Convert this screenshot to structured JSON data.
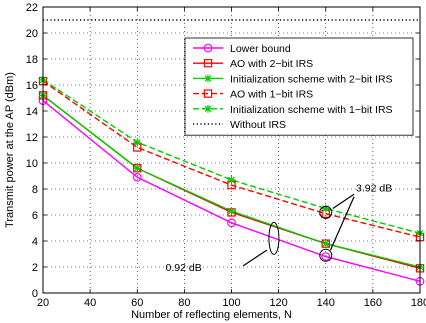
{
  "chart_data": {
    "type": "line",
    "title": "",
    "xlabel": "Number of reflecting elements, N",
    "ylabel": "Transmit power at the AP (dBm)",
    "xlim": [
      20,
      180
    ],
    "ylim": [
      0,
      22
    ],
    "x_ticks": [
      20,
      40,
      60,
      80,
      100,
      120,
      140,
      160,
      180
    ],
    "y_ticks": [
      0,
      2,
      4,
      6,
      8,
      10,
      12,
      14,
      16,
      18,
      20,
      22
    ],
    "grid": true,
    "grid_style": "dotted",
    "legend_position": "top-right",
    "x": [
      20,
      60,
      100,
      140,
      180
    ],
    "series": [
      {
        "name": "Lower bound",
        "values": [
          14.8,
          8.9,
          5.4,
          2.8,
          0.9
        ],
        "color": "#ff00ff",
        "dash": "solid",
        "marker": "circle"
      },
      {
        "name": "AO with 2−bit IRS",
        "values": [
          15.2,
          9.6,
          6.2,
          3.8,
          1.9
        ],
        "color": "#ff0000",
        "dash": "solid",
        "marker": "square"
      },
      {
        "name": "Initialization scheme with 2−bit IRS",
        "values": [
          15.2,
          9.6,
          6.3,
          3.8,
          2.0
        ],
        "color": "#00cc00",
        "dash": "solid",
        "marker": "star"
      },
      {
        "name": "AO with 1−bit IRS",
        "values": [
          16.3,
          11.2,
          8.3,
          6.1,
          4.3
        ],
        "color": "#ff0000",
        "dash": "dashed",
        "marker": "square"
      },
      {
        "name": "Initialization scheme with 1−bit IRS",
        "values": [
          16.4,
          11.6,
          8.7,
          6.5,
          4.6
        ],
        "color": "#00cc00",
        "dash": "dashed",
        "marker": "star"
      },
      {
        "name": "Without IRS",
        "values": [
          21.0,
          21.0,
          21.0,
          21.0,
          21.0
        ],
        "color": "#000000",
        "dash": "dotted",
        "marker": "none"
      }
    ],
    "annotations": [
      {
        "text": "3.92 dB"
      },
      {
        "text": "0.92 dB"
      }
    ]
  }
}
